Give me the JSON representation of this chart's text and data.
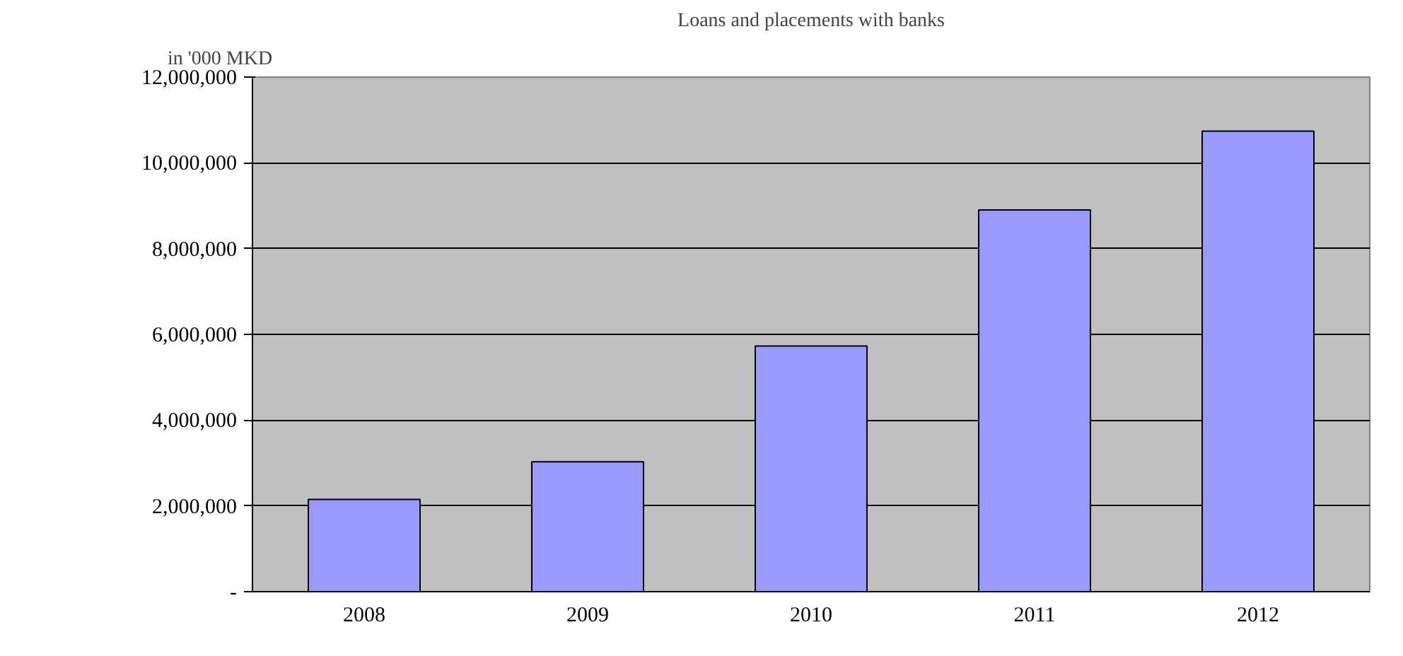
{
  "chart_data": {
    "type": "bar",
    "title": "Loans and placements with banks",
    "ylabel": "in '000 MKD",
    "categories": [
      "2008",
      "2009",
      "2010",
      "2011",
      "2012"
    ],
    "values": [
      2150000,
      3030000,
      5730000,
      8900000,
      10740000
    ],
    "color": "#9999ff",
    "ylim": [
      0,
      12000000
    ],
    "yticks": [
      {
        "value": 0,
        "label": "-"
      },
      {
        "value": 2000000,
        "label": "2,000,000"
      },
      {
        "value": 4000000,
        "label": "4,000,000"
      },
      {
        "value": 6000000,
        "label": "6,000,000"
      },
      {
        "value": 8000000,
        "label": "8,000,000"
      },
      {
        "value": 10000000,
        "label": "10,000,000"
      },
      {
        "value": 12000000,
        "label": "12,000,000"
      }
    ],
    "grid": "y"
  }
}
